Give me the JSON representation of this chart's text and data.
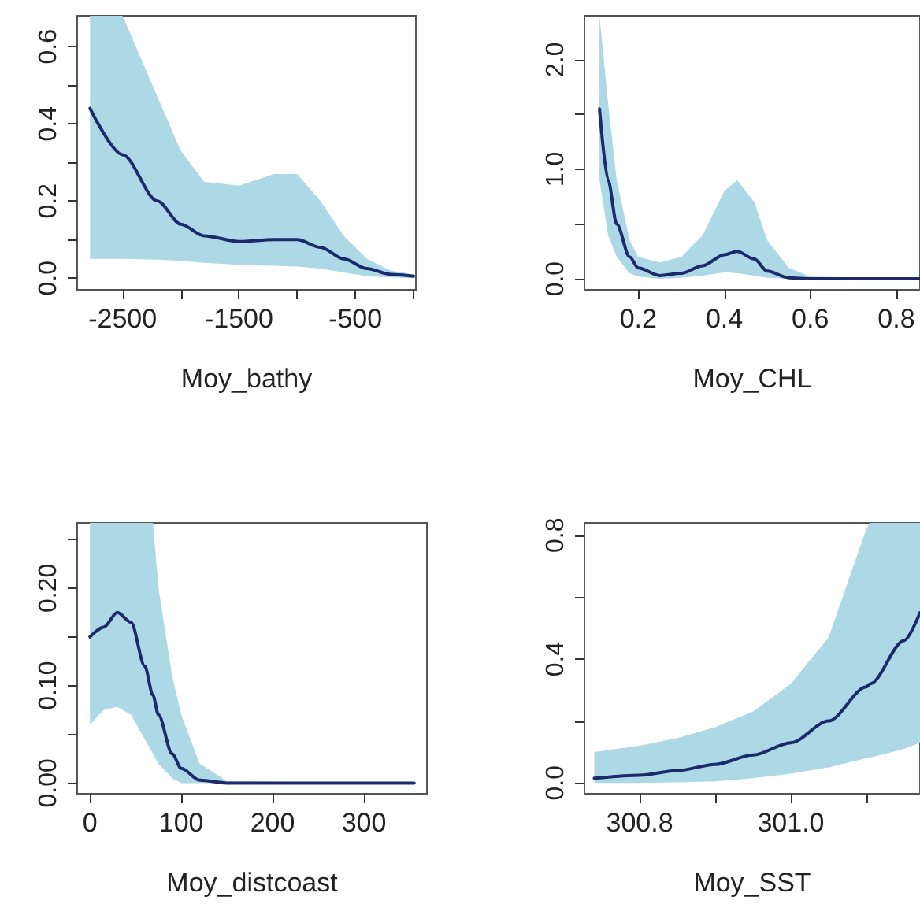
{
  "chart_data": [
    {
      "type": "line",
      "xlabel": "Moy_bathy",
      "xlim": [
        -2890,
        20
      ],
      "ylim": [
        -0.03,
        0.68
      ],
      "xticks": [
        -2500,
        {
          "value": -2000,
          "label": null
        },
        -1500,
        {
          "value": -1000,
          "label": null
        },
        -500,
        {
          "value": 0,
          "label": null
        }
      ],
      "yticks": [
        {
          "value": 0,
          "label": "0.0"
        },
        {
          "value": 0.1,
          "label": null
        },
        {
          "value": 0.2,
          "label": "0.2"
        },
        {
          "value": 0.3,
          "label": null
        },
        {
          "value": 0.4,
          "label": "0.4"
        },
        {
          "value": 0.5,
          "label": null
        },
        {
          "value": 0.6,
          "label": "0.6"
        }
      ],
      "grid": false,
      "marker": "none",
      "line_style": "solid",
      "series": [
        {
          "color": "#1c2a6b",
          "x": [
            -2780,
            -2500,
            -2200,
            -2000,
            -1800,
            -1500,
            -1200,
            -1000,
            -800,
            -600,
            -400,
            -200,
            0
          ],
          "values": [
            0.44,
            0.32,
            0.2,
            0.14,
            0.11,
            0.095,
            0.1,
            0.1,
            0.08,
            0.05,
            0.025,
            0.01,
            0.005
          ],
          "upper": [
            0.68,
            0.68,
            0.47,
            0.33,
            0.25,
            0.24,
            0.27,
            0.27,
            0.2,
            0.11,
            0.05,
            0.02,
            0.01
          ],
          "lower": [
            0.05,
            0.05,
            0.048,
            0.045,
            0.04,
            0.035,
            0.032,
            0.03,
            0.025,
            0.015,
            0.005,
            0.002,
            0
          ]
        }
      ]
    },
    {
      "type": "line",
      "xlabel": "Moy_CHL",
      "xlim": [
        0.075,
        0.855
      ],
      "ylim": [
        -0.1,
        2.4
      ],
      "xticks": [
        {
          "value": 0.2,
          "label": "0.2"
        },
        {
          "value": 0.4,
          "label": "0.4"
        },
        {
          "value": 0.6,
          "label": "0.6"
        },
        {
          "value": 0.8,
          "label": "0.8"
        }
      ],
      "yticks": [
        {
          "value": 0,
          "label": "0.0"
        },
        {
          "value": 0.5,
          "label": null
        },
        {
          "value": 1,
          "label": "1.0"
        },
        {
          "value": 1.5,
          "label": null
        },
        {
          "value": 2,
          "label": "2.0"
        }
      ],
      "grid": false,
      "marker": "none",
      "line_style": "solid",
      "series": [
        {
          "color": "#1c2a6b",
          "x": [
            0.11,
            0.13,
            0.15,
            0.18,
            0.2,
            0.25,
            0.3,
            0.35,
            0.4,
            0.43,
            0.47,
            0.5,
            0.55,
            0.6,
            0.855
          ],
          "values": [
            1.55,
            0.9,
            0.5,
            0.2,
            0.1,
            0.03,
            0.05,
            0.12,
            0.22,
            0.25,
            0.18,
            0.07,
            0.01,
            0,
            0
          ],
          "upper": [
            2.4,
            1.6,
            0.9,
            0.35,
            0.2,
            0.15,
            0.2,
            0.4,
            0.8,
            0.9,
            0.7,
            0.35,
            0.1,
            0.02,
            0
          ],
          "lower": [
            0.9,
            0.4,
            0.2,
            0.05,
            0.02,
            0,
            0.01,
            0.03,
            0.06,
            0.05,
            0.03,
            0.01,
            0,
            0,
            0
          ]
        }
      ]
    },
    {
      "type": "line",
      "xlabel": "Moy_distcoast",
      "xlim": [
        -14,
        369
      ],
      "ylim": [
        -0.011,
        0.267
      ],
      "xticks": [
        0,
        100,
        200,
        300
      ],
      "yticks": [
        {
          "value": 0,
          "label": "0.00"
        },
        {
          "value": 0.05,
          "label": null
        },
        {
          "value": 0.1,
          "label": "0.10"
        },
        {
          "value": 0.15,
          "label": null
        },
        {
          "value": 0.2,
          "label": "0.20"
        },
        {
          "value": 0.25,
          "label": null
        }
      ],
      "grid": false,
      "marker": "none",
      "line_style": "solid",
      "series": [
        {
          "color": "#1c2a6b",
          "x": [
            0,
            15,
            30,
            45,
            60,
            69,
            75,
            90,
            100,
            120,
            150,
            355
          ],
          "values": [
            0.15,
            0.16,
            0.175,
            0.165,
            0.12,
            0.09,
            0.07,
            0.03,
            0.015,
            0.003,
            0,
            0
          ],
          "upper": [
            0.267,
            0.267,
            0.267,
            0.267,
            0.267,
            0.267,
            0.2,
            0.11,
            0.07,
            0.02,
            0.002,
            0
          ],
          "lower": [
            0.06,
            0.075,
            0.078,
            0.07,
            0.045,
            0.03,
            0.02,
            0.005,
            0,
            0,
            0,
            0
          ]
        }
      ]
    },
    {
      "type": "line",
      "xlabel": "Moy_SST",
      "xlim": [
        300.727,
        301.171
      ],
      "ylim": [
        -0.035,
        0.84
      ],
      "xticks": [
        {
          "value": 300.8,
          "label": "300.8"
        },
        {
          "value": 300.9,
          "label": null
        },
        {
          "value": 301,
          "label": "301.0"
        },
        {
          "value": 301.1,
          "label": null
        }
      ],
      "yticks": [
        {
          "value": 0,
          "label": "0.0"
        },
        {
          "value": 0.2,
          "label": null
        },
        {
          "value": 0.4,
          "label": "0.4"
        },
        {
          "value": 0.6,
          "label": null
        },
        {
          "value": 0.8,
          "label": "0.8"
        }
      ],
      "grid": false,
      "marker": "none",
      "line_style": "solid",
      "series": [
        {
          "color": "#1c2a6b",
          "x": [
            300.74,
            300.8,
            300.85,
            300.9,
            300.95,
            301,
            301.05,
            301.1,
            301.105,
            301.15,
            301.171
          ],
          "values": [
            0.015,
            0.025,
            0.04,
            0.06,
            0.09,
            0.13,
            0.2,
            0.31,
            0.32,
            0.46,
            0.55
          ],
          "upper": [
            0.1,
            0.12,
            0.145,
            0.18,
            0.23,
            0.32,
            0.47,
            0.82,
            0.84,
            0.84,
            0.84
          ],
          "lower": [
            0,
            0,
            0.002,
            0.005,
            0.015,
            0.03,
            0.05,
            0.08,
            0.082,
            0.11,
            0.13
          ]
        }
      ]
    }
  ]
}
